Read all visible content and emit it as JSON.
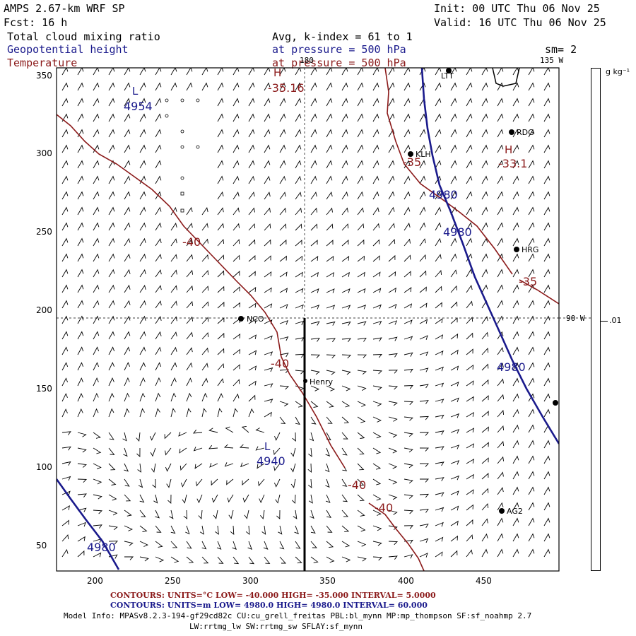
{
  "header": {
    "model": "AMPS 2.67-km WRF SP",
    "forecast": "Fcst:   16 h",
    "init": "Init: 00 UTC Thu 06 Nov 25",
    "valid": "Valid: 16 UTC Thu 06 Nov 25"
  },
  "fields": {
    "cloud": "Total cloud mixing ratio",
    "geopotential": "Geopotential height",
    "temperature": "Temperature"
  },
  "levels": {
    "avg": "Avg, k-index =  61 to   1",
    "pressure1": "at pressure =  500 hPa",
    "pressure2": "at pressure =  500 hPa",
    "smoothing": "sm= 2"
  },
  "colorbar": {
    "units": "g kg⁻¹",
    "value": ".01"
  },
  "meridians": {
    "top_180": "180",
    "top_135w": "135 W",
    "right_90w": "90 W"
  },
  "axes": {
    "x_ticks": [
      "200",
      "250",
      "300",
      "350",
      "400",
      "450"
    ],
    "y_ticks": [
      "350",
      "300",
      "250",
      "200",
      "150",
      "100",
      "50"
    ]
  },
  "stations": [
    {
      "label": "NCO"
    },
    {
      "label": "Henry"
    },
    {
      "label": "KLH"
    },
    {
      "label": "RDG"
    },
    {
      "label": "HRG"
    },
    {
      "label": "AG2"
    },
    {
      "label": "LTT"
    },
    {
      "label": ""
    }
  ],
  "contour_labels": {
    "t1": "-40",
    "t2": "-40",
    "t3": "-40",
    "t4": "-40",
    "t5": "-35",
    "t6": "-35",
    "t7": "-35.16",
    "t8": "-33.1",
    "g1": "4954",
    "g2": "4940",
    "g3": "4980",
    "g4": "4980",
    "g5": "4980",
    "g6": "4980",
    "h1": "H",
    "h2": "H",
    "l1": "L",
    "l2": "L"
  },
  "footer": {
    "red_line": "CONTOURS:  UNITS=°C  LOW=  -40.000          HIGH=  -35.000          INTERVAL=     5.0000",
    "blue_line": "CONTOURS:  UNITS=m  LOW=    4980.0           HIGH=   4980.0           INTERVAL=    60.000",
    "model_info": "Model Info: MPASv8.2.3-194-gf29cd82c CU:cu_grell_freitas PBL:bl_mynn MP:mp_thompson SF:sf_noahmp 2.7",
    "model_info2": "LW:rrtmg_lw SW:rrtmg_sw SFLAY:sf_mynn"
  },
  "colors": {
    "temperature": "#8b1a1a",
    "geopotential": "#1a1a8c",
    "frame": "#000000"
  }
}
